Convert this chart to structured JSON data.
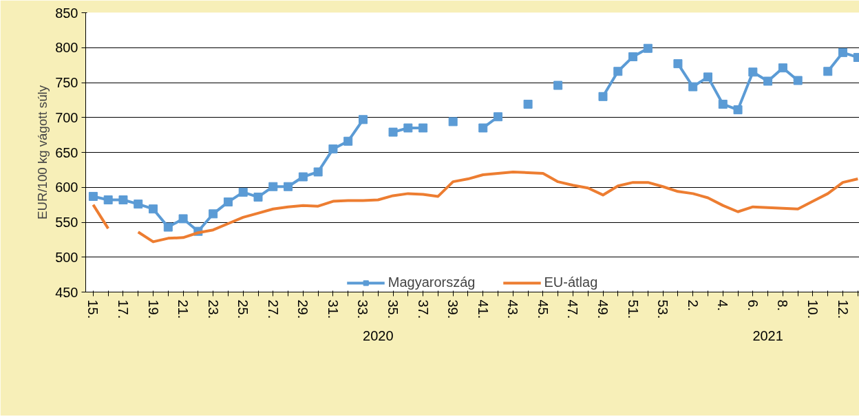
{
  "chart_data": {
    "type": "line",
    "ylabel": "EUR/100 kg vágott súly",
    "categories": [
      "15.",
      null,
      "17.",
      null,
      "19.",
      null,
      "21.",
      null,
      "23.",
      null,
      "25.",
      null,
      "27.",
      null,
      "29.",
      null,
      "31.",
      null,
      "33.",
      null,
      "35.",
      null,
      "37.",
      null,
      "39.",
      null,
      "41.",
      null,
      "43.",
      null,
      "45.",
      null,
      "47.",
      null,
      "49.",
      null,
      "51.",
      null,
      "53.",
      null,
      "2.",
      null,
      "4.",
      null,
      "6.",
      null,
      "8.",
      null,
      "10.",
      null,
      "12.",
      null
    ],
    "series": [
      {
        "name": "Magyarország",
        "color": "#5b9bd5",
        "marker": "square",
        "values": [
          587,
          582,
          582,
          576,
          569,
          543,
          555,
          537,
          562,
          579,
          593,
          586,
          601,
          601,
          615,
          622,
          655,
          666,
          697,
          null,
          679,
          685,
          685,
          null,
          694,
          null,
          685,
          701,
          null,
          719,
          null,
          746,
          null,
          null,
          730,
          766,
          787,
          799,
          null,
          777,
          744,
          758,
          719,
          711,
          765,
          752,
          771,
          753,
          null,
          766,
          793,
          786
        ]
      },
      {
        "name": "EU-átlag",
        "color": "#ed7d31",
        "marker": "none",
        "values": [
          575,
          541,
          null,
          536,
          522,
          527,
          528,
          535,
          539,
          548,
          557,
          563,
          569,
          572,
          574,
          573,
          580,
          581,
          581,
          582,
          588,
          591,
          590,
          587,
          608,
          612,
          618,
          620,
          622,
          621,
          620,
          608,
          603,
          599,
          589,
          602,
          607,
          607,
          601,
          594,
          591,
          585,
          574,
          565,
          572,
          571,
          570,
          569,
          580,
          591,
          607,
          612
        ]
      }
    ],
    "ylim": [
      450,
      850
    ],
    "yticks": [
      450,
      500,
      550,
      600,
      650,
      700,
      750,
      800,
      850
    ],
    "grid": "y",
    "legend": "bottom",
    "line_style": "solid",
    "annotations": [
      "2020",
      "2021"
    ]
  }
}
